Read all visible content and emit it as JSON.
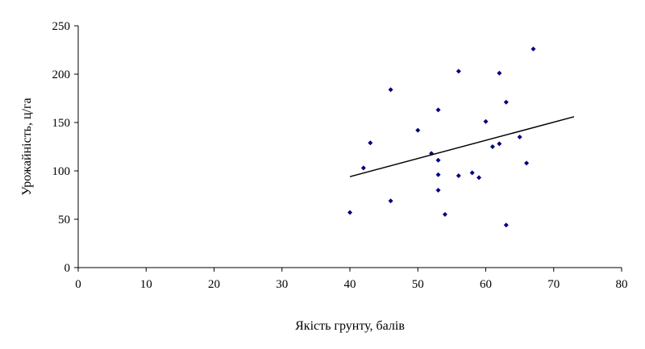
{
  "chart_data": {
    "type": "scatter",
    "title": "",
    "xlabel": "Якість грунту, балів",
    "ylabel": "Урожайність, ц/га",
    "xlim": [
      0,
      80
    ],
    "ylim": [
      0,
      250
    ],
    "xticks": [
      0,
      10,
      20,
      30,
      40,
      50,
      60,
      70,
      80
    ],
    "yticks": [
      0,
      50,
      100,
      150,
      200,
      250
    ],
    "xtick_labels": [
      "0",
      "10",
      "20",
      "30",
      "40",
      "50",
      "60",
      "70",
      "80"
    ],
    "ytick_labels": [
      "0",
      "50",
      "100",
      "150",
      "200",
      "250"
    ],
    "grid": false,
    "legend": "none",
    "series": [
      {
        "kind": "points",
        "color": "#00007f",
        "marker": "diamond",
        "points": [
          {
            "x": 40,
            "y": 57
          },
          {
            "x": 42,
            "y": 103
          },
          {
            "x": 43,
            "y": 129
          },
          {
            "x": 46,
            "y": 184
          },
          {
            "x": 46,
            "y": 69
          },
          {
            "x": 50,
            "y": 142
          },
          {
            "x": 52,
            "y": 118
          },
          {
            "x": 53,
            "y": 163
          },
          {
            "x": 53,
            "y": 111
          },
          {
            "x": 53,
            "y": 96
          },
          {
            "x": 53,
            "y": 80
          },
          {
            "x": 54,
            "y": 55
          },
          {
            "x": 56,
            "y": 203
          },
          {
            "x": 56,
            "y": 95
          },
          {
            "x": 58,
            "y": 98
          },
          {
            "x": 59,
            "y": 93
          },
          {
            "x": 60,
            "y": 151
          },
          {
            "x": 61,
            "y": 125
          },
          {
            "x": 62,
            "y": 201
          },
          {
            "x": 62,
            "y": 128
          },
          {
            "x": 63,
            "y": 171
          },
          {
            "x": 63,
            "y": 44
          },
          {
            "x": 65,
            "y": 135
          },
          {
            "x": 66,
            "y": 108
          },
          {
            "x": 67,
            "y": 226
          }
        ]
      },
      {
        "kind": "trendline",
        "color": "#000000",
        "x": [
          40,
          73
        ],
        "y": [
          94,
          156
        ]
      }
    ]
  }
}
